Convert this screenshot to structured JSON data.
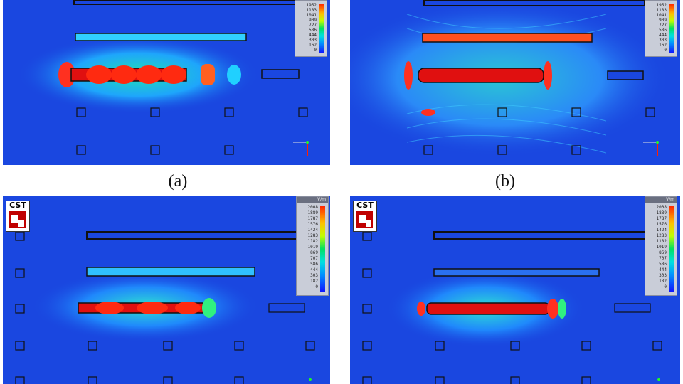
{
  "captions": {
    "a": "(a)",
    "b": "(b)"
  },
  "logo_text": "CST",
  "legend_unit": "V/m",
  "legend_ticks_top": [
    "1952",
    "1183",
    "1041",
    "909",
    "727",
    "586",
    "444",
    "303",
    "162",
    "0"
  ],
  "legend_ticks_bottom": [
    "2008",
    "1889",
    "1787",
    "1576",
    "1424",
    "1283",
    "1182",
    "1019",
    "869",
    "707",
    "586",
    "444",
    "303",
    "182",
    "0"
  ],
  "colors": {
    "background_field": "#1a47e0",
    "hot": "#e01010",
    "warm": "#20e0c0",
    "frame": "#111111"
  }
}
